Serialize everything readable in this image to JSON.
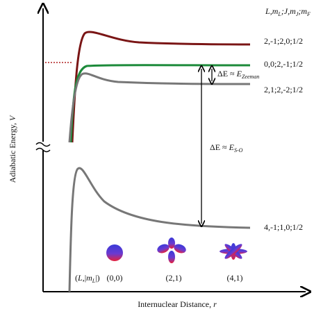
{
  "axes": {
    "y_label": [
      "Adiabatic Energy, ",
      "V"
    ],
    "x_label": [
      "Internuclear Distance, ",
      "r"
    ]
  },
  "header": [
    "L",
    ",m",
    "L",
    ";J,m",
    "J",
    ";m",
    "F"
  ],
  "curves": [
    {
      "label": "2,-1;2,0;1/2"
    },
    {
      "label": "0,0;2,-1;1/2"
    },
    {
      "label": "2,1;2,-2;1/2"
    },
    {
      "label": "4,-1;1,0;1/2"
    }
  ],
  "annotations": {
    "zeeman": [
      "ΔE ≈ ",
      "E",
      "Zeeman"
    ],
    "spin_orbit": [
      "ΔE ≈ ",
      "E",
      "S-O"
    ]
  },
  "orbitals": {
    "key": [
      "(",
      "L",
      ",|",
      "m",
      "L",
      "|)"
    ],
    "labels": [
      "(0,0)",
      "(2,1)",
      "(4,1)"
    ]
  }
}
